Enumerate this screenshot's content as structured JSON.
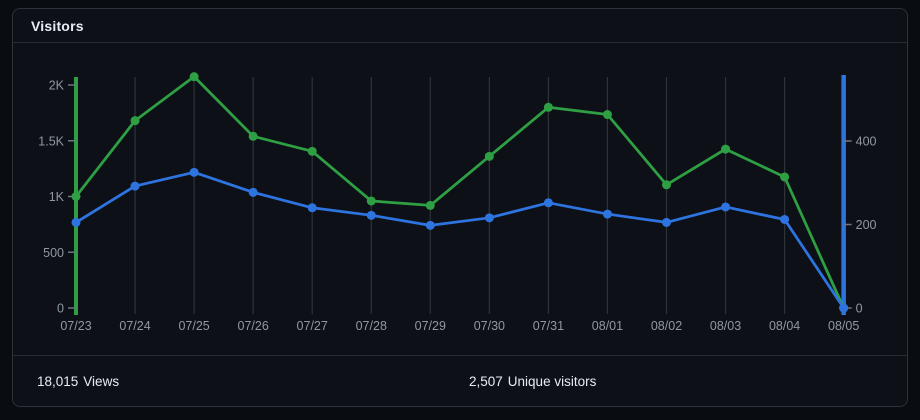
{
  "card": {
    "title": "Visitors"
  },
  "footer": {
    "views": {
      "value": "18,015",
      "label": "Views"
    },
    "unique": {
      "value": "2,507",
      "label": "Unique visitors"
    }
  },
  "colors": {
    "views_green": "#2ea043",
    "unique_blue": "#2e74e0",
    "grid": "#2e333a",
    "tick": "#6e7681",
    "axis_label": "#9198a1"
  },
  "chart_data": {
    "type": "line",
    "title": "Visitors",
    "x": [
      "07/23",
      "07/24",
      "07/25",
      "07/26",
      "07/27",
      "07/28",
      "07/29",
      "07/30",
      "07/31",
      "08/01",
      "08/02",
      "08/03",
      "08/04",
      "08/05"
    ],
    "series": [
      {
        "name": "Views",
        "axis": "left",
        "color": "#2ea043",
        "values": [
          1000,
          1680,
          2075,
          1540,
          1405,
          960,
          920,
          1360,
          1800,
          1735,
          1105,
          1425,
          1175,
          0
        ]
      },
      {
        "name": "Unique visitors",
        "axis": "right",
        "color": "#2e74e0",
        "values": [
          205,
          292,
          325,
          277,
          240,
          222,
          198,
          216,
          252,
          225,
          205,
          242,
          212,
          0
        ]
      }
    ],
    "left_axis": {
      "tick_values": [
        0,
        500,
        1000,
        1500,
        2000
      ],
      "tick_labels": [
        "0",
        "500",
        "1K",
        "1.5K",
        "2K"
      ],
      "range": [
        0,
        2000
      ],
      "color": "#2ea043"
    },
    "right_axis": {
      "tick_values": [
        0,
        200,
        400
      ],
      "tick_labels": [
        "0",
        "200",
        "400"
      ],
      "range": [
        0,
        400
      ],
      "color": "#2e74e0"
    },
    "grid": "vertical",
    "legend": "none"
  }
}
